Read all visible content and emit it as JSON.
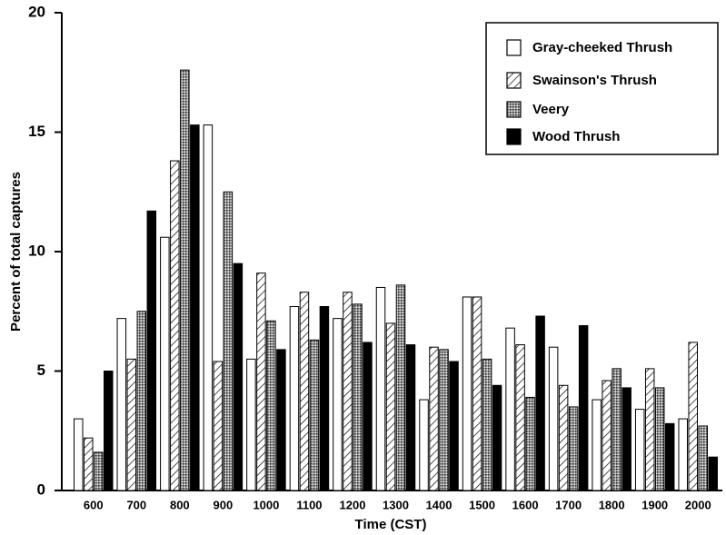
{
  "chart_data": {
    "type": "bar",
    "x_label": "Time (CST)",
    "y_label": "Percent of total captures",
    "categories": [
      "600",
      "700",
      "800",
      "900",
      "1000",
      "1100",
      "1200",
      "1300",
      "1400",
      "1500",
      "1600",
      "1700",
      "1800",
      "1900",
      "2000"
    ],
    "series": [
      {
        "name": "Gray-cheeked Thrush",
        "color": "#ffffff",
        "pattern": "solid",
        "values": [
          3.0,
          7.2,
          10.6,
          15.3,
          5.5,
          7.7,
          7.2,
          8.5,
          3.8,
          8.1,
          6.8,
          6.0,
          3.8,
          3.4,
          3.0
        ]
      },
      {
        "name": "Swainson's Thrush",
        "color": "#ffffff",
        "pattern": "hatch",
        "values": [
          2.2,
          5.5,
          13.8,
          5.4,
          9.1,
          8.3,
          8.3,
          7.0,
          6.0,
          8.1,
          6.1,
          4.4,
          4.6,
          5.1,
          6.2
        ]
      },
      {
        "name": "Veery",
        "color": "#808080",
        "pattern": "crosshatch",
        "values": [
          1.6,
          7.5,
          17.6,
          12.5,
          7.1,
          6.3,
          7.8,
          8.6,
          5.9,
          5.5,
          3.9,
          3.5,
          5.1,
          4.3,
          2.7
        ]
      },
      {
        "name": "Wood Thrush",
        "color": "#000000",
        "pattern": "solid",
        "values": [
          5.0,
          11.7,
          15.3,
          9.5,
          5.9,
          7.7,
          6.2,
          6.1,
          5.4,
          4.4,
          7.3,
          6.9,
          4.3,
          2.8,
          1.4
        ]
      }
    ],
    "ylim": [
      0,
      20
    ],
    "yticks": [
      0,
      5,
      10,
      15,
      20
    ],
    "grid": false,
    "legend": "upper right"
  }
}
